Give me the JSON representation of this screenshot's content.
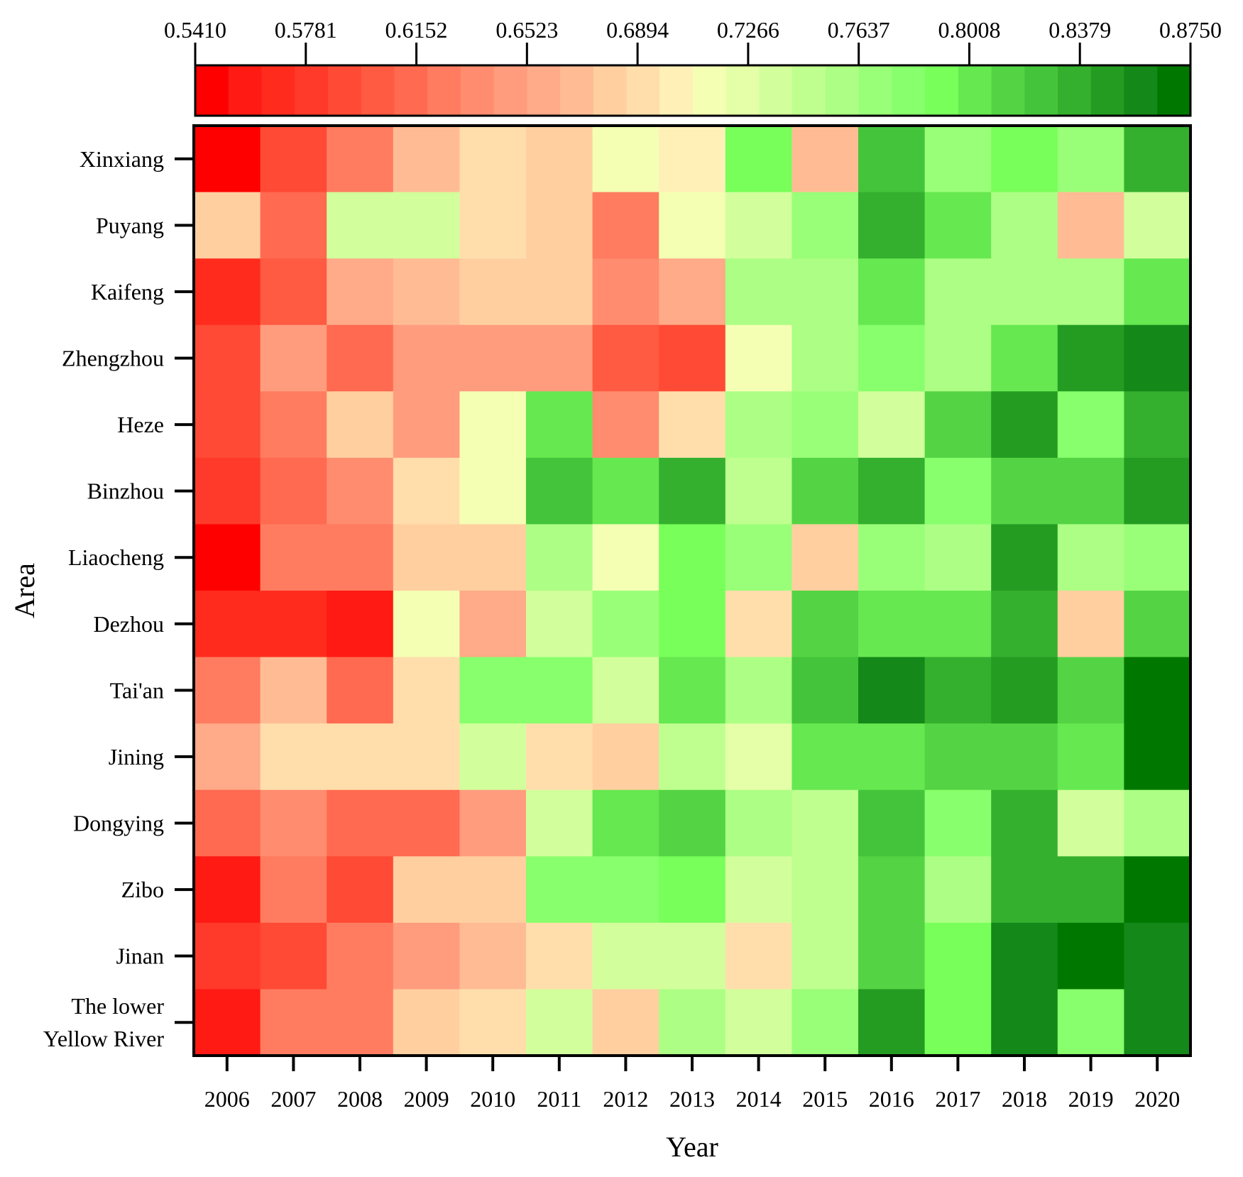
{
  "chart_data": {
    "type": "heatmap",
    "xlabel": "Year",
    "ylabel": "Area",
    "x_categories": [
      "2006",
      "2007",
      "2008",
      "2009",
      "2010",
      "2011",
      "2012",
      "2013",
      "2014",
      "2015",
      "2016",
      "2017",
      "2018",
      "2019",
      "2020"
    ],
    "y_categories": [
      "Xinxiang",
      "Puyang",
      "Kaifeng",
      "Zhengzhou",
      "Heze",
      "Binzhou",
      "Liaocheng",
      "Dezhou",
      "Tai'an",
      "Jining",
      "Dongying",
      "Zibo",
      "Jinan",
      "The lower Yellow River"
    ],
    "y_label_lines": {
      "The lower Yellow River": [
        "The lower",
        "Yellow River"
      ]
    },
    "colorbar": {
      "min": 0.541,
      "max": 0.875,
      "tick_labels": [
        "0.5410",
        "0.5781",
        "0.6152",
        "0.6523",
        "0.6894",
        "0.7266",
        "0.7637",
        "0.8008",
        "0.8379",
        "0.8750"
      ],
      "colors": [
        "#ff0000",
        "#ff1a14",
        "#ff2c1e",
        "#ff3a2a",
        "#ff4a35",
        "#ff5a42",
        "#ff6a50",
        "#ff7c60",
        "#ff8c6e",
        "#ff9c7e",
        "#ffaa88",
        "#ffbc94",
        "#ffcfa0",
        "#ffdeac",
        "#fff0b8",
        "#f4ffb4",
        "#e4ffa8",
        "#d2ff9c",
        "#bfff90",
        "#acff84",
        "#9aff78",
        "#88ff6c",
        "#78ff5a",
        "#66e850",
        "#54d444",
        "#44c43a",
        "#34b02e",
        "#249c22",
        "#148818",
        "#007800"
      ]
    },
    "values": [
      [
        0.551,
        0.596,
        0.622,
        0.671,
        0.688,
        0.675,
        0.714,
        0.697,
        0.794,
        0.67,
        0.827,
        0.769,
        0.788,
        0.767,
        0.838
      ],
      [
        0.685,
        0.617,
        0.74,
        0.74,
        0.686,
        0.676,
        0.621,
        0.716,
        0.74,
        0.772,
        0.838,
        0.801,
        0.762,
        0.668,
        0.738
      ],
      [
        0.565,
        0.599,
        0.66,
        0.672,
        0.683,
        0.683,
        0.64,
        0.656,
        0.755,
        0.755,
        0.801,
        0.755,
        0.755,
        0.755,
        0.803
      ],
      [
        0.59,
        0.65,
        0.618,
        0.648,
        0.648,
        0.649,
        0.603,
        0.593,
        0.717,
        0.755,
        0.781,
        0.759,
        0.808,
        0.846,
        0.855
      ],
      [
        0.59,
        0.627,
        0.679,
        0.643,
        0.719,
        0.801,
        0.637,
        0.686,
        0.762,
        0.773,
        0.738,
        0.811,
        0.851,
        0.778,
        0.835
      ],
      [
        0.583,
        0.615,
        0.632,
        0.687,
        0.716,
        0.825,
        0.803,
        0.834,
        0.747,
        0.818,
        0.834,
        0.785,
        0.811,
        0.818,
        0.846
      ],
      [
        0.541,
        0.619,
        0.619,
        0.675,
        0.675,
        0.755,
        0.716,
        0.789,
        0.766,
        0.683,
        0.771,
        0.755,
        0.842,
        0.762,
        0.767
      ],
      [
        0.569,
        0.569,
        0.557,
        0.718,
        0.653,
        0.738,
        0.771,
        0.789,
        0.688,
        0.818,
        0.801,
        0.801,
        0.834,
        0.68,
        0.812
      ],
      [
        0.63,
        0.67,
        0.611,
        0.693,
        0.778,
        0.778,
        0.738,
        0.801,
        0.76,
        0.827,
        0.86,
        0.839,
        0.851,
        0.811,
        0.87
      ],
      [
        0.658,
        0.686,
        0.686,
        0.693,
        0.74,
        0.694,
        0.681,
        0.745,
        0.722,
        0.798,
        0.798,
        0.811,
        0.818,
        0.801,
        0.875
      ],
      [
        0.616,
        0.64,
        0.613,
        0.613,
        0.645,
        0.738,
        0.803,
        0.819,
        0.755,
        0.749,
        0.826,
        0.78,
        0.838,
        0.738,
        0.76
      ],
      [
        0.553,
        0.629,
        0.588,
        0.683,
        0.683,
        0.781,
        0.781,
        0.795,
        0.738,
        0.747,
        0.811,
        0.757,
        0.838,
        0.838,
        0.864
      ],
      [
        0.577,
        0.586,
        0.62,
        0.65,
        0.671,
        0.69,
        0.733,
        0.733,
        0.689,
        0.75,
        0.811,
        0.789,
        0.858,
        0.864,
        0.854
      ],
      [
        0.56,
        0.628,
        0.621,
        0.682,
        0.69,
        0.732,
        0.685,
        0.755,
        0.738,
        0.768,
        0.851,
        0.796,
        0.858,
        0.781,
        0.857
      ]
    ]
  }
}
